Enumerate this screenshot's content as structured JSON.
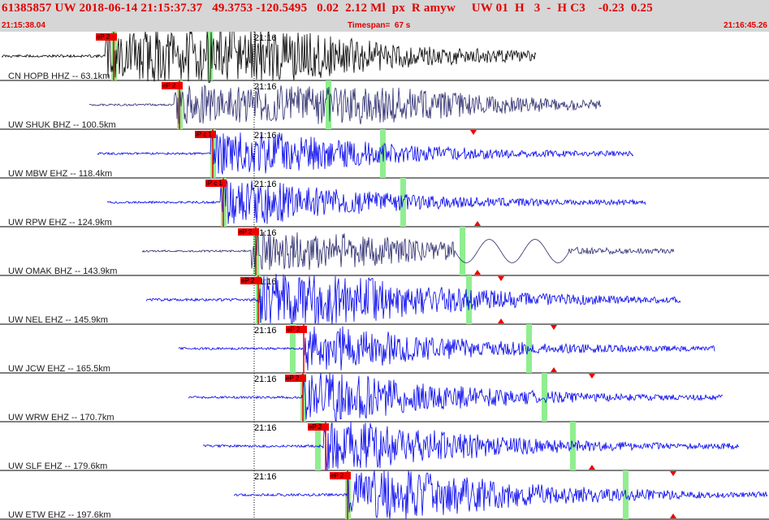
{
  "header": {
    "title": "61385857 UW 2018-06-14 21:15:37.37   49.3753 -120.5495   0.02  2.12 Ml  px  R amyw     UW 01  H   3  -  H C3    -0.23  0.25",
    "start_time": "21:15:38.04",
    "timespan": "Timespan=  67 s",
    "end_time": "21:16:45.26"
  },
  "colors": {
    "header_bg": "#d6d6d6",
    "header_text": "#e00000",
    "trace_black": "#000000",
    "trace_dark": "#2a2a6e",
    "trace_blue": "#0000ee",
    "pick_box": "#ee0000",
    "green_band": "#90ee90"
  },
  "panels": [
    {
      "label": "CN HOPB HHZ -- 63.1km",
      "tick": "21:16",
      "pick": "eP 2",
      "color": "black",
      "channel": "HHZ"
    },
    {
      "label": "UW SHUK BHZ -- 100.5km",
      "tick": "21:16",
      "pick": "eP 2",
      "color": "dark",
      "channel": "BHZ"
    },
    {
      "label": "UW MBW EHZ -- 118.4km",
      "tick": "21:16",
      "pick": "iP c 1",
      "color": "blue",
      "channel": "EHZ"
    },
    {
      "label": "UW RPW EHZ -- 124.9km",
      "tick": "21:16",
      "pick": "iP c 1",
      "color": "blue",
      "channel": "EHZ"
    },
    {
      "label": "UW OMAK BHZ -- 143.9km",
      "tick": "21:16",
      "pick": "eP 2",
      "color": "dark",
      "channel": "BHZ"
    },
    {
      "label": "UW NEL EHZ -- 145.9km",
      "tick": "21:16",
      "pick": "eP 2",
      "color": "blue",
      "channel": "EHZ"
    },
    {
      "label": "UW JCW EHZ -- 165.5km",
      "tick": "21:16",
      "pick": "eP 2",
      "color": "blue",
      "channel": "EHZ"
    },
    {
      "label": "UW WRW EHZ -- 170.7km",
      "tick": "21:16",
      "pick": "eP 2",
      "color": "blue",
      "channel": "EHZ"
    },
    {
      "label": "UW SLF EHZ -- 179.6km",
      "tick": "21:16",
      "pick": "eP 2",
      "color": "blue",
      "channel": "EHZ"
    },
    {
      "label": "UW ETW EHZ -- 197.6km",
      "tick": "21:16",
      "pick": "eP 2",
      "color": "blue",
      "channel": "EHZ"
    }
  ]
}
